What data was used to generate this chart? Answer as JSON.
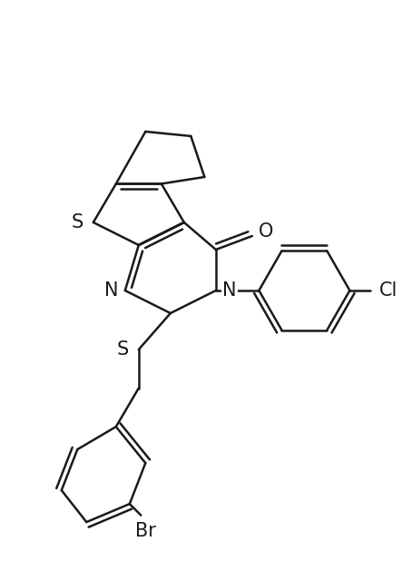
{
  "bg_color": "#ffffff",
  "line_color": "#1a1a1a",
  "line_width": 1.8,
  "font_size_label": 14,
  "figsize": [
    4.43,
    6.4
  ],
  "dpi": 100,
  "xlim": [
    -0.5,
    8.0
  ],
  "ylim": [
    -2.5,
    8.5
  ]
}
